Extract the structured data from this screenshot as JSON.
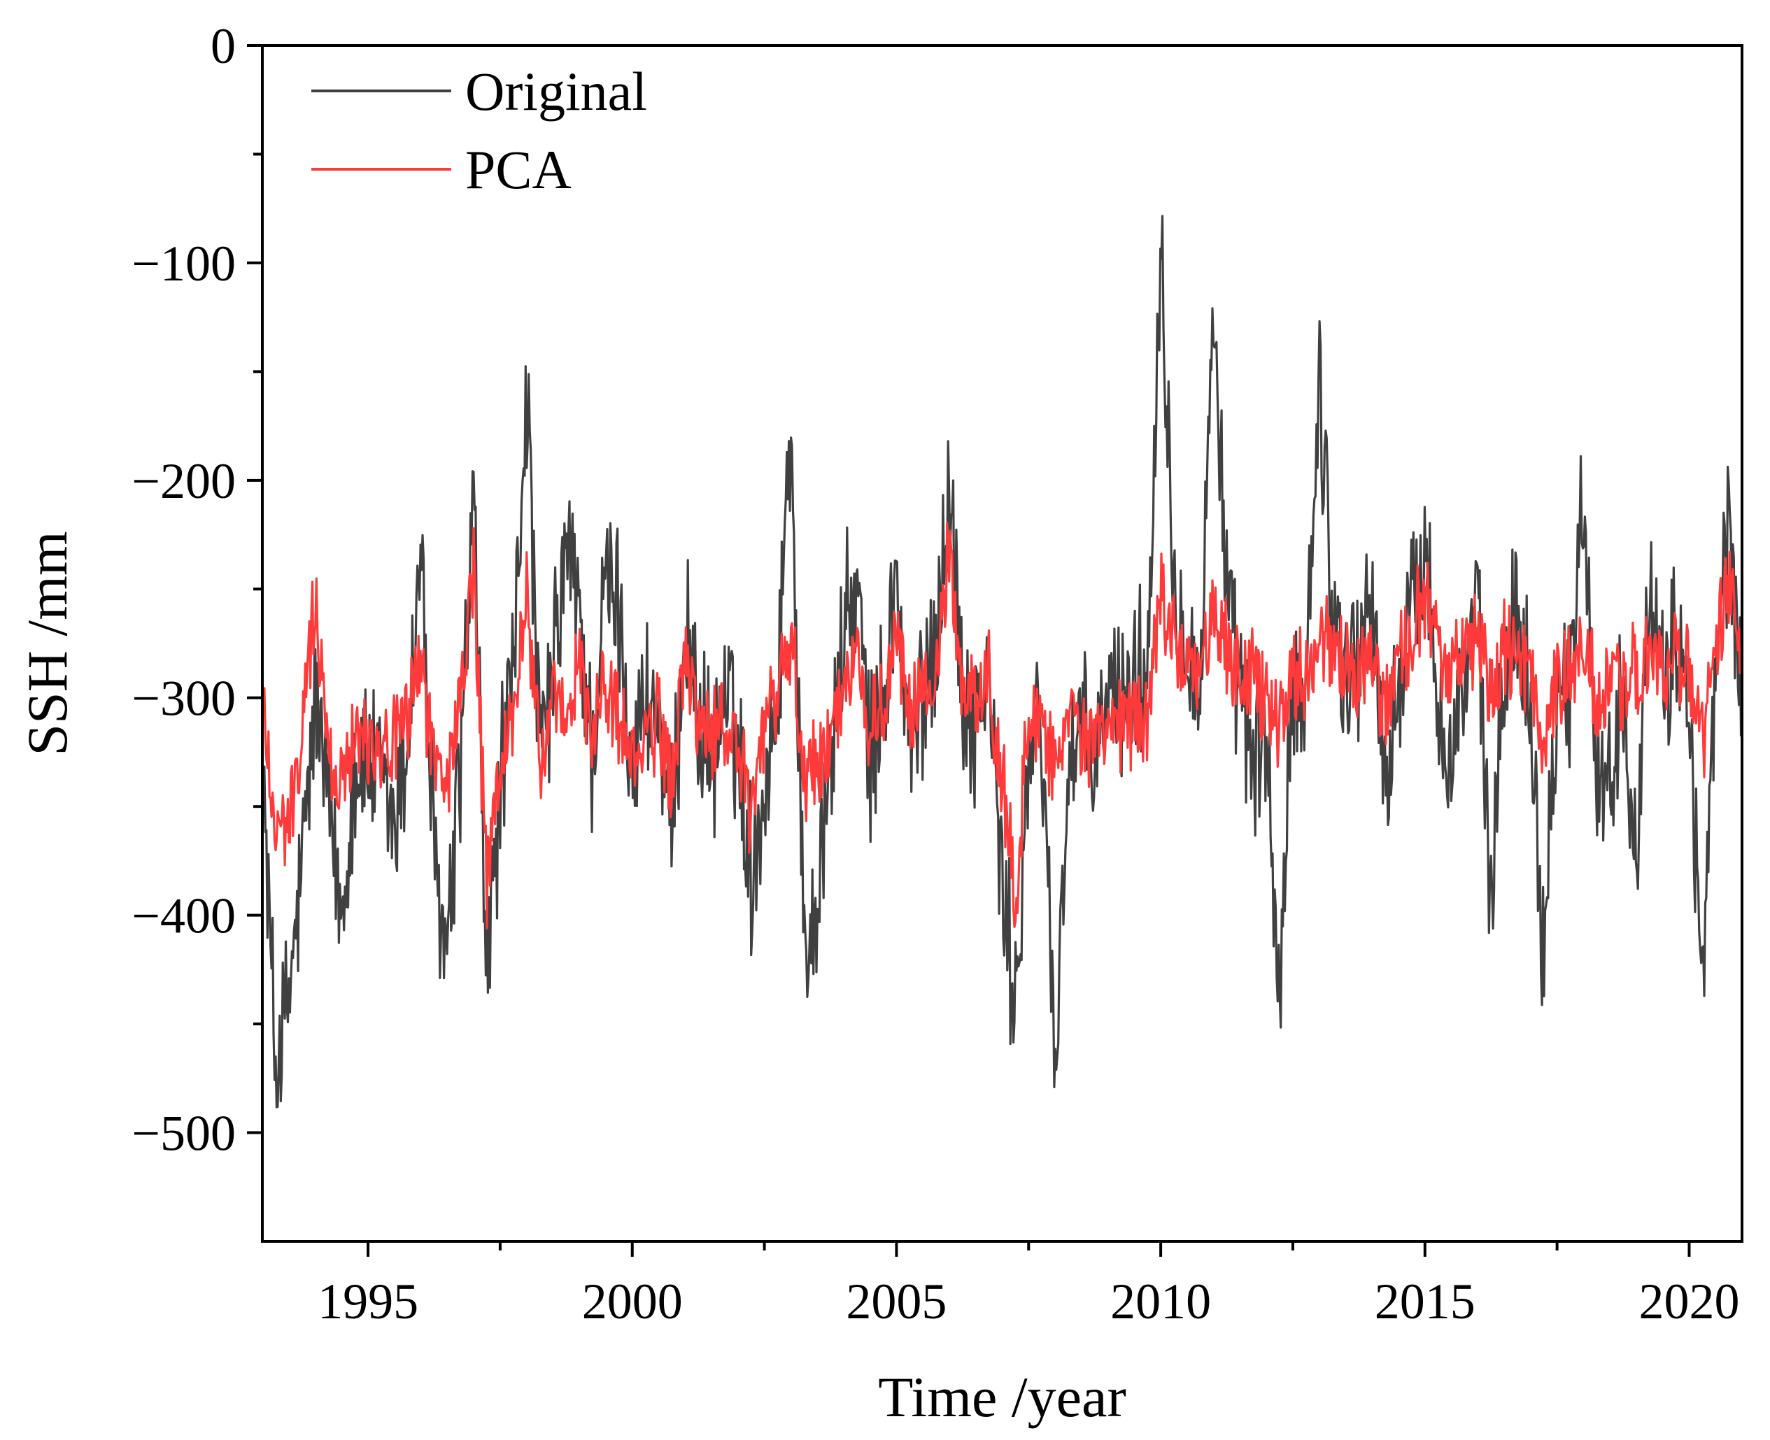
{
  "chart_data": {
    "type": "line",
    "title": "",
    "xlabel": "Time /year",
    "ylabel": "SSH /mm",
    "xlim": [
      1993.0,
      2021.0
    ],
    "ylim": [
      -550,
      0
    ],
    "x_ticks": [
      1995,
      2000,
      2005,
      2010,
      2015,
      2020
    ],
    "x_tick_labels": [
      "1995",
      "2000",
      "2005",
      "2010",
      "2015",
      "2020"
    ],
    "x_minor_ticks": [
      1997.5,
      2002.5,
      2007.5,
      2012.5,
      2017.5
    ],
    "y_ticks": [
      0,
      -100,
      -200,
      -300,
      -400,
      -500
    ],
    "y_tick_labels": [
      "0",
      "−100",
      "−200",
      "−300",
      "−400",
      "−500"
    ],
    "y_minor_ticks": [
      -50,
      -150,
      -250,
      -350,
      -450
    ],
    "grid": false,
    "legend": {
      "position": "top-left",
      "entries": [
        "Original",
        "PCA"
      ]
    },
    "series": [
      {
        "name": "Original",
        "color": "#404040",
        "x": [
          1993.0,
          1993.25,
          1993.5,
          1993.75,
          1994.0,
          1994.25,
          1994.5,
          1994.75,
          1995.0,
          1995.25,
          1995.5,
          1995.75,
          1996.0,
          1996.25,
          1996.5,
          1996.75,
          1997.0,
          1997.25,
          1997.5,
          1997.75,
          1998.0,
          1998.25,
          1998.5,
          1998.75,
          1999.0,
          1999.25,
          1999.5,
          1999.75,
          2000.0,
          2000.25,
          2000.5,
          2000.75,
          2001.0,
          2001.25,
          2001.5,
          2001.75,
          2002.0,
          2002.25,
          2002.5,
          2002.75,
          2003.0,
          2003.25,
          2003.5,
          2003.75,
          2004.0,
          2004.25,
          2004.5,
          2004.75,
          2005.0,
          2005.25,
          2005.5,
          2005.75,
          2006.0,
          2006.25,
          2006.5,
          2006.75,
          2007.0,
          2007.25,
          2007.5,
          2007.75,
          2008.0,
          2008.25,
          2008.5,
          2008.75,
          2009.0,
          2009.25,
          2009.5,
          2009.75,
          2010.0,
          2010.25,
          2010.5,
          2010.75,
          2011.0,
          2011.25,
          2011.5,
          2011.75,
          2012.0,
          2012.25,
          2012.5,
          2012.75,
          2013.0,
          2013.25,
          2013.5,
          2013.75,
          2014.0,
          2014.25,
          2014.5,
          2014.75,
          2015.0,
          2015.25,
          2015.5,
          2015.75,
          2016.0,
          2016.25,
          2016.5,
          2016.75,
          2017.0,
          2017.25,
          2017.5,
          2017.75,
          2018.0,
          2018.25,
          2018.5,
          2018.75,
          2019.0,
          2019.25,
          2019.5,
          2019.75,
          2020.0,
          2020.25,
          2020.5,
          2020.75,
          2021.0
        ],
        "values": [
          -330,
          -470,
          -440,
          -380,
          -300,
          -350,
          -400,
          -330,
          -330,
          -340,
          -360,
          -320,
          -230,
          -380,
          -420,
          -330,
          -210,
          -430,
          -340,
          -290,
          -155,
          -330,
          -290,
          -230,
          -260,
          -330,
          -245,
          -260,
          -330,
          -300,
          -310,
          -370,
          -260,
          -310,
          -330,
          -300,
          -320,
          -380,
          -340,
          -300,
          -165,
          -420,
          -390,
          -330,
          -270,
          -250,
          -330,
          -300,
          -245,
          -330,
          -300,
          -270,
          -200,
          -300,
          -310,
          -290,
          -390,
          -440,
          -330,
          -310,
          -470,
          -330,
          -320,
          -330,
          -300,
          -300,
          -290,
          -290,
          -80,
          -250,
          -270,
          -300,
          -110,
          -260,
          -300,
          -330,
          -320,
          -440,
          -300,
          -290,
          -150,
          -260,
          -290,
          -280,
          -250,
          -350,
          -290,
          -260,
          -230,
          -300,
          -330,
          -290,
          -260,
          -400,
          -280,
          -260,
          -300,
          -420,
          -290,
          -300,
          -200,
          -330,
          -340,
          -300,
          -360,
          -260,
          -300,
          -270,
          -300,
          -440,
          -290,
          -220,
          -300
        ]
      },
      {
        "name": "PCA",
        "color": "#ff3a3a",
        "x": [
          1993.0,
          1993.25,
          1993.5,
          1993.75,
          1994.0,
          1994.25,
          1994.5,
          1994.75,
          1995.0,
          1995.25,
          1995.5,
          1995.75,
          1996.0,
          1996.25,
          1996.5,
          1996.75,
          1997.0,
          1997.25,
          1997.5,
          1997.75,
          1998.0,
          1998.25,
          1998.5,
          1998.75,
          1999.0,
          1999.25,
          1999.5,
          1999.75,
          2000.0,
          2000.25,
          2000.5,
          2000.75,
          2001.0,
          2001.25,
          2001.5,
          2001.75,
          2002.0,
          2002.25,
          2002.5,
          2002.75,
          2003.0,
          2003.25,
          2003.5,
          2003.75,
          2004.0,
          2004.25,
          2004.5,
          2004.75,
          2005.0,
          2005.25,
          2005.5,
          2005.75,
          2006.0,
          2006.25,
          2006.5,
          2006.75,
          2007.0,
          2007.25,
          2007.5,
          2007.75,
          2008.0,
          2008.25,
          2008.5,
          2008.75,
          2009.0,
          2009.25,
          2009.5,
          2009.75,
          2010.0,
          2010.25,
          2010.5,
          2010.75,
          2011.0,
          2011.25,
          2011.5,
          2011.75,
          2012.0,
          2012.25,
          2012.5,
          2012.75,
          2013.0,
          2013.25,
          2013.5,
          2013.75,
          2014.0,
          2014.25,
          2014.5,
          2014.75,
          2015.0,
          2015.25,
          2015.5,
          2015.75,
          2016.0,
          2016.25,
          2016.5,
          2016.75,
          2017.0,
          2017.25,
          2017.5,
          2017.75,
          2018.0,
          2018.25,
          2018.5,
          2018.75,
          2019.0,
          2019.25,
          2019.5,
          2019.75,
          2020.0,
          2020.25,
          2020.5,
          2020.75,
          2021.0
        ],
        "values": [
          -300,
          -360,
          -360,
          -320,
          -250,
          -330,
          -340,
          -310,
          -320,
          -320,
          -320,
          -310,
          -280,
          -330,
          -340,
          -300,
          -240,
          -390,
          -330,
          -310,
          -250,
          -330,
          -300,
          -320,
          -280,
          -320,
          -290,
          -310,
          -330,
          -320,
          -310,
          -340,
          -280,
          -310,
          -320,
          -310,
          -320,
          -360,
          -310,
          -300,
          -270,
          -340,
          -330,
          -320,
          -290,
          -280,
          -310,
          -310,
          -270,
          -310,
          -300,
          -290,
          -230,
          -300,
          -300,
          -290,
          -340,
          -390,
          -310,
          -310,
          -330,
          -310,
          -320,
          -320,
          -320,
          -310,
          -310,
          -310,
          -250,
          -270,
          -280,
          -290,
          -260,
          -280,
          -290,
          -290,
          -300,
          -310,
          -290,
          -290,
          -270,
          -280,
          -290,
          -290,
          -280,
          -310,
          -280,
          -270,
          -250,
          -280,
          -290,
          -280,
          -270,
          -300,
          -280,
          -280,
          -290,
          -320,
          -290,
          -290,
          -280,
          -300,
          -300,
          -290,
          -290,
          -280,
          -290,
          -280,
          -290,
          -320,
          -280,
          -250,
          -280
        ]
      }
    ]
  }
}
